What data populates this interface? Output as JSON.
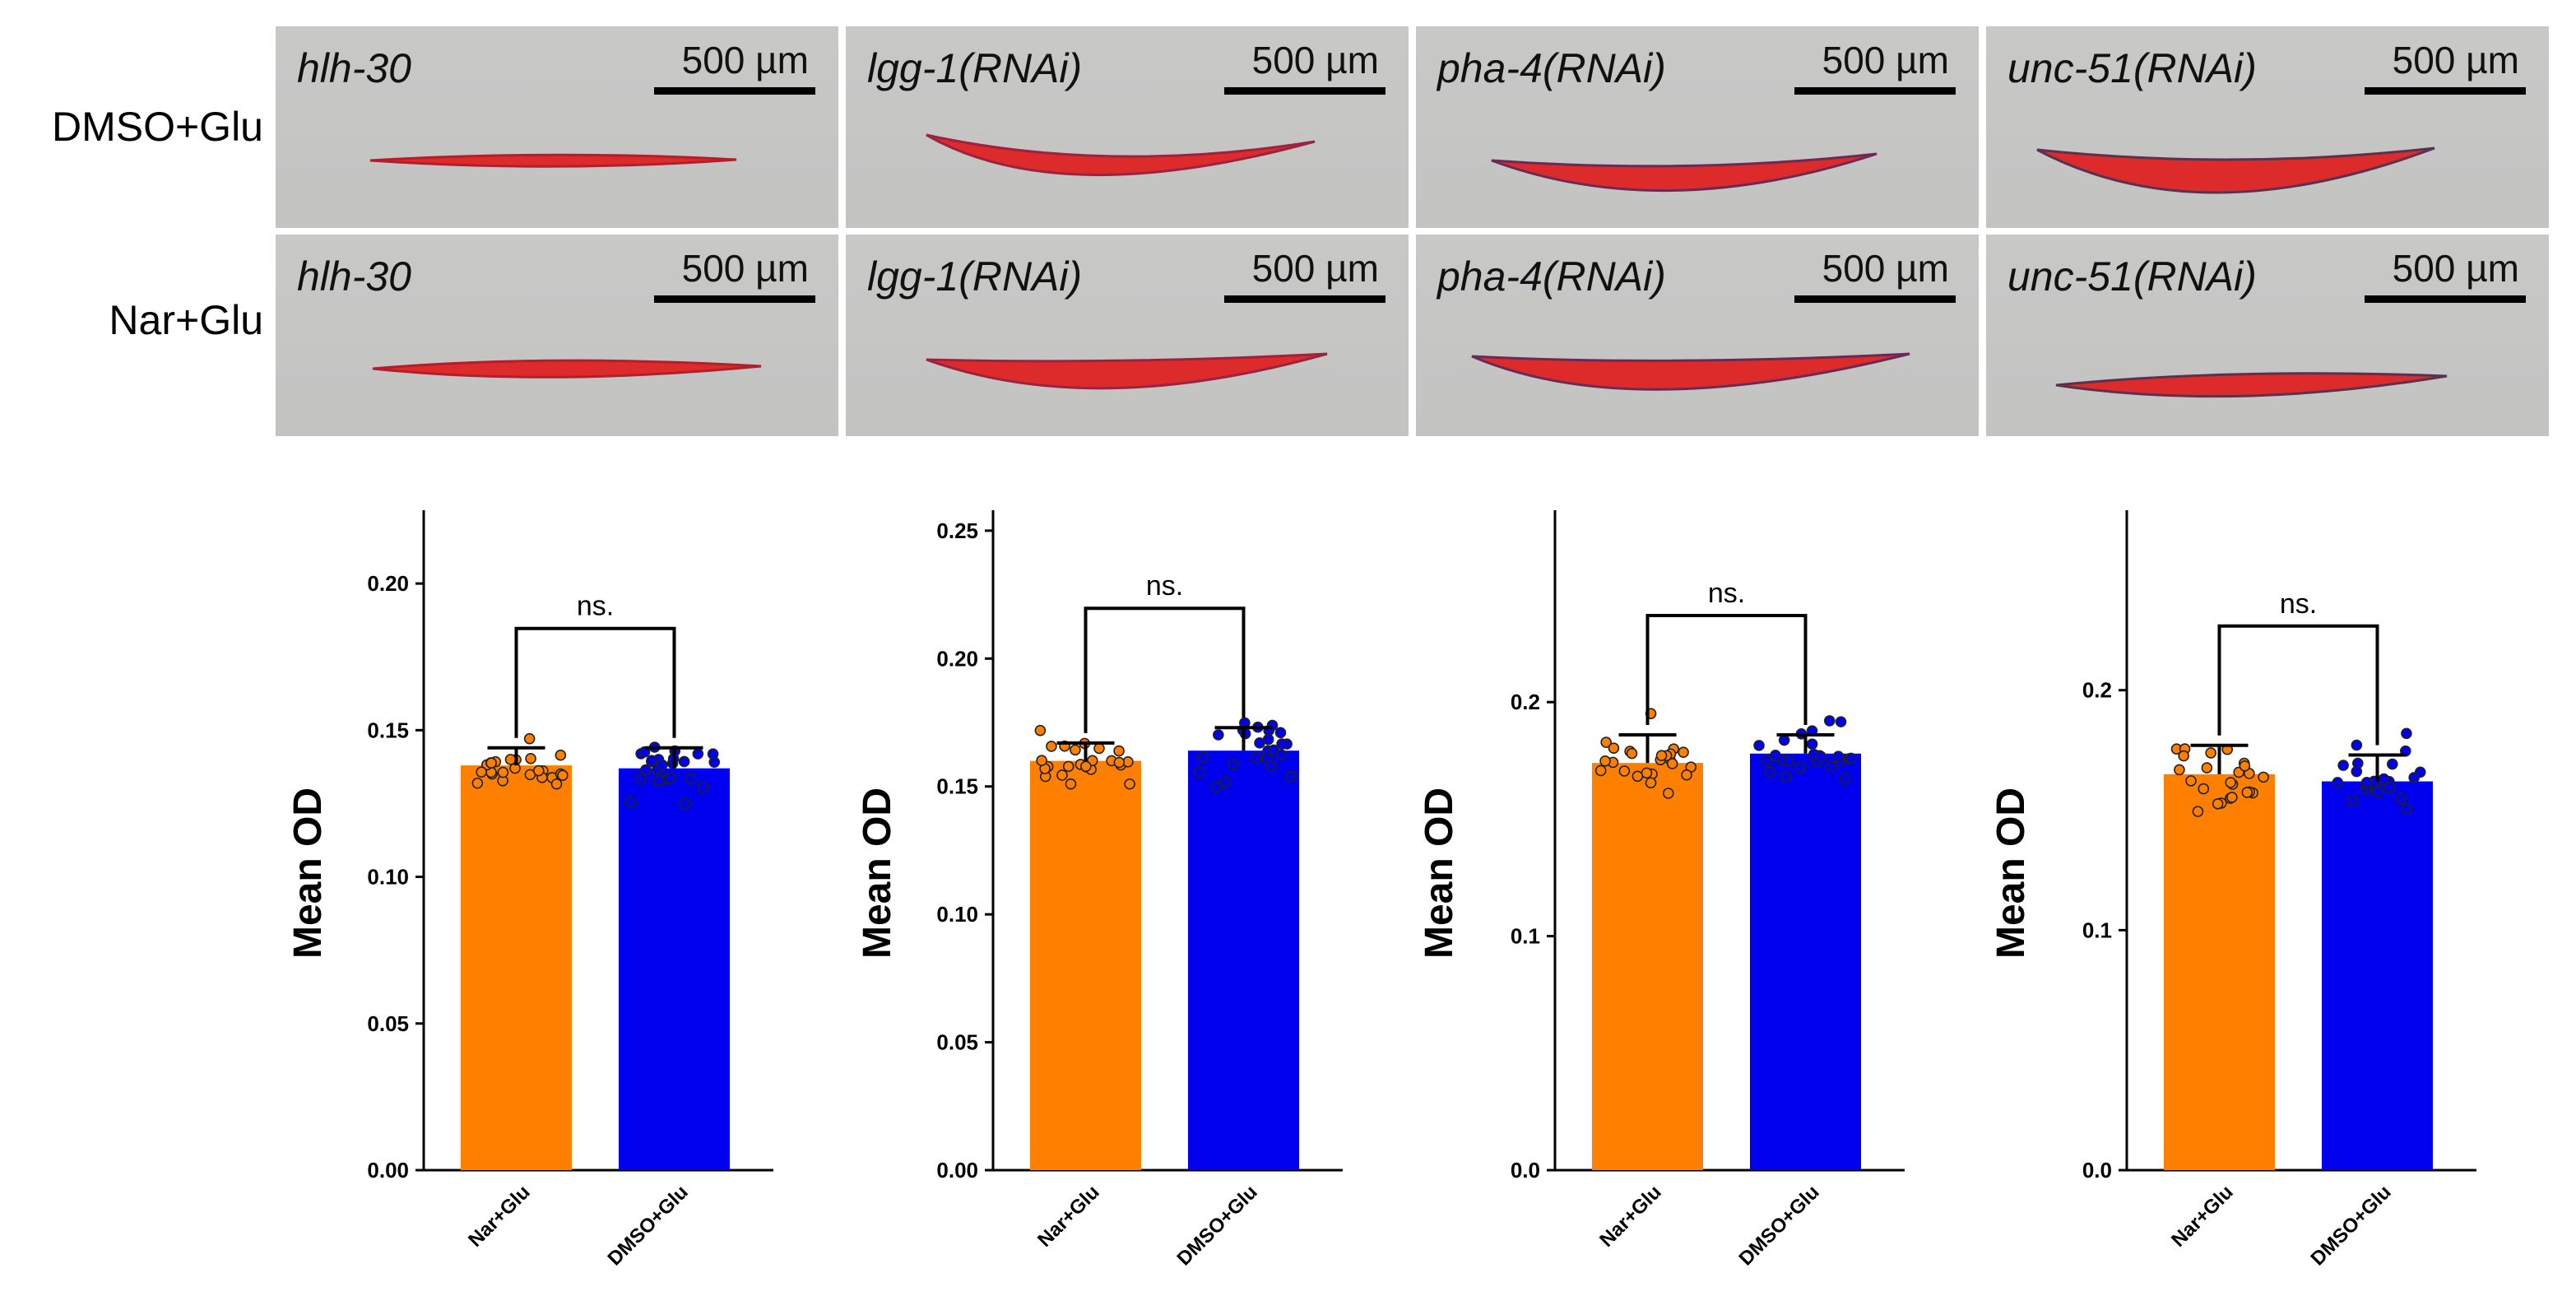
{
  "figure": {
    "row_labels": [
      "DMSO+Glu",
      "Nar+Glu"
    ],
    "columns": [
      {
        "label": "hlh-30",
        "scale_bar": "500 µm"
      },
      {
        "label": "lgg-1(RNAi)",
        "scale_bar": "500 µm"
      },
      {
        "label": "pha-4(RNAi)",
        "scale_bar": "500 µm"
      },
      {
        "label": "unc-51(RNAi)",
        "scale_bar": "500 µm"
      }
    ]
  },
  "colors": {
    "nar": "#ff8000",
    "dmso": "#0000ee",
    "stain": "#dd2a2a"
  },
  "chart_data": [
    {
      "type": "bar",
      "categories": [
        "Nar+Glu",
        "DMSO+Glu"
      ],
      "values": [
        0.138,
        0.137
      ],
      "errors": [
        0.006,
        0.007
      ],
      "ylabel": "Mean OD",
      "ylim": [
        0,
        0.225
      ],
      "yticks": [
        0.0,
        0.05,
        0.1,
        0.15,
        0.2
      ],
      "ytick_labels": [
        "0.00",
        "0.05",
        "0.10",
        "0.15",
        "0.20"
      ],
      "significance": "ns."
    },
    {
      "type": "bar",
      "categories": [
        "Nar+Glu",
        "DMSO+Glu"
      ],
      "values": [
        0.16,
        0.164
      ],
      "errors": [
        0.007,
        0.009
      ],
      "ylabel": "Mean OD",
      "ylim": [
        0,
        0.258
      ],
      "yticks": [
        0.0,
        0.05,
        0.1,
        0.15,
        0.2,
        0.25
      ],
      "ytick_labels": [
        "0.00",
        "0.05",
        "0.10",
        "0.15",
        "0.20",
        "0.25"
      ],
      "significance": "ns."
    },
    {
      "type": "bar",
      "categories": [
        "Nar+Glu",
        "DMSO+Glu"
      ],
      "values": [
        0.174,
        0.178
      ],
      "errors": [
        0.012,
        0.008
      ],
      "ylabel": "Mean OD",
      "ylim": [
        0,
        0.282
      ],
      "yticks": [
        0.0,
        0.1,
        0.2
      ],
      "ytick_labels": [
        "0.0",
        "0.1",
        "0.2"
      ],
      "significance": "ns."
    },
    {
      "type": "bar",
      "categories": [
        "Nar+Glu",
        "DMSO+Glu"
      ],
      "values": [
        0.165,
        0.162
      ],
      "errors": [
        0.012,
        0.011
      ],
      "ylabel": "Mean OD",
      "ylim": [
        0,
        0.275
      ],
      "yticks": [
        0.0,
        0.1,
        0.2
      ],
      "ytick_labels": [
        "0.0",
        "0.1",
        "0.2"
      ],
      "significance": "ns."
    }
  ]
}
